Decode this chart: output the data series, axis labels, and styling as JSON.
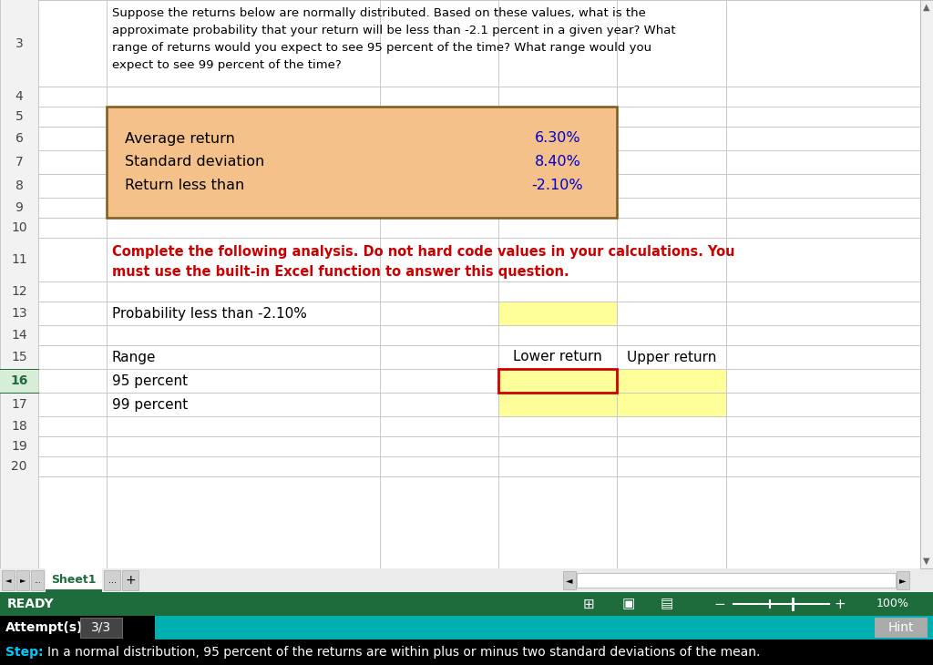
{
  "bg_color": "#ffffff",
  "question_text_line1": "Suppose the returns below are normally distributed. Based on these values, what is the",
  "question_text_line2": "approximate probability that your return will be less than -2.1 percent in a given year? What",
  "question_text_line3": "range of returns would you expect to see 95 percent of the time? What range would you",
  "question_text_line4": "expect to see 99 percent of the time?",
  "label_avg": "Average return",
  "label_std": "Standard deviation",
  "label_ret": "Return less than",
  "val_avg": "6.30%",
  "val_std": "8.40%",
  "val_ret": "-2.10%",
  "instruction_line1": "Complete the following analysis. Do not hard code values in your calculations. You",
  "instruction_line2": "must use the built-in Excel function to answer this question.",
  "prob_label": "Probability less than -2.10%",
  "range_label": "Range",
  "lower_return": "Lower return",
  "upper_return": "Upper return",
  "pct95_label": "95 percent",
  "pct99_label": "99 percent",
  "orange_fill": "#F5C18A",
  "orange_border": "#7B5B1A",
  "yellow_fill": "#FFFF99",
  "grid_color": "#C8C8C8",
  "blue_val_color": "#0000CC",
  "red_text_color": "#CC0000",
  "cell_border_color": "#CC0000",
  "green_bar_color": "#1E6B3C",
  "cyan_bar_color": "#00AFAF",
  "black_bar_color": "#000000",
  "step_cyan": "#00CCFF",
  "step_text": "In a normal distribution, 95 percent of the returns are within plus or minus two standard deviations of the mean.",
  "attempts_label": "Attempt(s)",
  "attempts_value": "3/3",
  "hint_label": "Hint",
  "ready_label": "READY",
  "row16_num_color": "#1E6B3C",
  "row16_num_bg": "#D8EDD8",
  "active_cell_border": "#1E6B3C"
}
